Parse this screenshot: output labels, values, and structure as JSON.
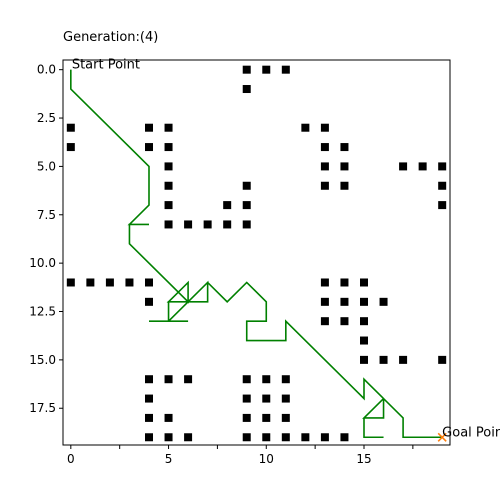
{
  "chart_data": {
    "type": "scatter",
    "title": "Generation:(4)",
    "xlim": [
      -0.4,
      19.4
    ],
    "ylim": [
      19.4,
      -0.5
    ],
    "y_inverted": true,
    "grid": false,
    "x_ticks": [
      0.0,
      2.5,
      5.0,
      7.5,
      10.0,
      12.5,
      15.0,
      17.5
    ],
    "x_tick_labels": [
      "0",
      "5",
      "10",
      "15"
    ],
    "x_tick_label_values": [
      0,
      5,
      10,
      15
    ],
    "y_ticks": [
      0.0,
      2.5,
      5.0,
      7.5,
      10.0,
      12.5,
      15.0,
      17.5
    ],
    "y_tick_labels": [
      "0.0",
      "2.5",
      "5.0",
      "7.5",
      "10.0",
      "12.5",
      "15.0",
      "17.5"
    ],
    "start": {
      "x": 0,
      "y": 0,
      "label": "Start Point"
    },
    "goal": {
      "x": 19,
      "y": 19,
      "label": "Goal Point",
      "marker": "x",
      "color": "#ff7f0e"
    },
    "obstacle_color": "#000000",
    "path_color": "#008000",
    "obstacles": [
      [
        9,
        0
      ],
      [
        10,
        0
      ],
      [
        11,
        0
      ],
      [
        9,
        1
      ],
      [
        0,
        3
      ],
      [
        4,
        3
      ],
      [
        5,
        3
      ],
      [
        12,
        3
      ],
      [
        13,
        3
      ],
      [
        0,
        4
      ],
      [
        4,
        4
      ],
      [
        5,
        4
      ],
      [
        13,
        4
      ],
      [
        14,
        4
      ],
      [
        5,
        5
      ],
      [
        13,
        5
      ],
      [
        14,
        5
      ],
      [
        17,
        5
      ],
      [
        18,
        5
      ],
      [
        19,
        5
      ],
      [
        5,
        6
      ],
      [
        9,
        6
      ],
      [
        13,
        6
      ],
      [
        14,
        6
      ],
      [
        19,
        6
      ],
      [
        5,
        7
      ],
      [
        8,
        7
      ],
      [
        9,
        7
      ],
      [
        19,
        7
      ],
      [
        5,
        8
      ],
      [
        6,
        8
      ],
      [
        7,
        8
      ],
      [
        8,
        8
      ],
      [
        9,
        8
      ],
      [
        0,
        11
      ],
      [
        1,
        11
      ],
      [
        2,
        11
      ],
      [
        3,
        11
      ],
      [
        4,
        11
      ],
      [
        13,
        11
      ],
      [
        14,
        11
      ],
      [
        15,
        11
      ],
      [
        4,
        12
      ],
      [
        13,
        12
      ],
      [
        14,
        12
      ],
      [
        15,
        12
      ],
      [
        16,
        12
      ],
      [
        13,
        13
      ],
      [
        14,
        13
      ],
      [
        15,
        13
      ],
      [
        15,
        14
      ],
      [
        15,
        15
      ],
      [
        16,
        15
      ],
      [
        17,
        15
      ],
      [
        19,
        15
      ],
      [
        4,
        16
      ],
      [
        5,
        16
      ],
      [
        6,
        16
      ],
      [
        9,
        16
      ],
      [
        10,
        16
      ],
      [
        11,
        16
      ],
      [
        4,
        17
      ],
      [
        9,
        17
      ],
      [
        10,
        17
      ],
      [
        11,
        17
      ],
      [
        4,
        18
      ],
      [
        5,
        18
      ],
      [
        9,
        18
      ],
      [
        10,
        18
      ],
      [
        11,
        18
      ],
      [
        4,
        19
      ],
      [
        5,
        19
      ],
      [
        6,
        19
      ],
      [
        9,
        19
      ],
      [
        10,
        19
      ],
      [
        11,
        19
      ],
      [
        12,
        19
      ],
      [
        13,
        19
      ],
      [
        14,
        19
      ]
    ],
    "path": [
      [
        0,
        0
      ],
      [
        0,
        1
      ],
      [
        4,
        5
      ],
      [
        4,
        7
      ],
      [
        3,
        8
      ],
      [
        4,
        8
      ],
      [
        3,
        8
      ],
      [
        3,
        9
      ],
      [
        6,
        12
      ],
      [
        6,
        11
      ],
      [
        5,
        12
      ],
      [
        7,
        12
      ],
      [
        7,
        11
      ],
      [
        5,
        13
      ],
      [
        4,
        13
      ],
      [
        6,
        13
      ],
      [
        5,
        13
      ],
      [
        5,
        12
      ],
      [
        6,
        12
      ],
      [
        7,
        11
      ],
      [
        8,
        12
      ],
      [
        9,
        11
      ],
      [
        10,
        12
      ],
      [
        10,
        13
      ],
      [
        9,
        13
      ],
      [
        9,
        14
      ],
      [
        11,
        14
      ],
      [
        11,
        13
      ],
      [
        15,
        17
      ],
      [
        15,
        16
      ],
      [
        16,
        17
      ],
      [
        16,
        18
      ],
      [
        15,
        18
      ],
      [
        16,
        17
      ],
      [
        17,
        18
      ],
      [
        17,
        19
      ],
      [
        19,
        19
      ],
      [
        18,
        19
      ],
      [
        17,
        19
      ],
      [
        17,
        18
      ],
      [
        16,
        17
      ],
      [
        15,
        18
      ],
      [
        15,
        19
      ],
      [
        16,
        19
      ]
    ]
  }
}
